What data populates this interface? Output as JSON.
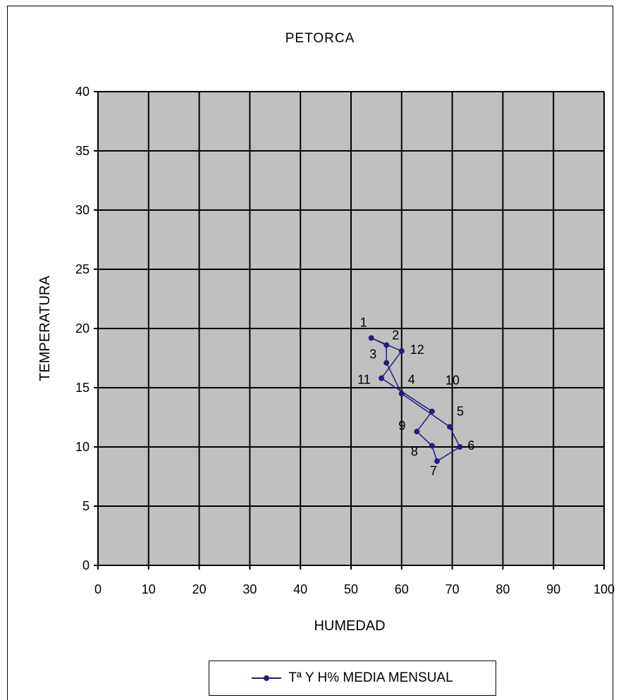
{
  "chart_data": {
    "type": "scatter",
    "title": "PETORCA",
    "xlabel": "HUMEDAD",
    "ylabel": "TEMPERATURA",
    "xlim": [
      0,
      100
    ],
    "ylim": [
      0,
      40
    ],
    "xticks": [
      0,
      10,
      20,
      30,
      40,
      50,
      60,
      70,
      80,
      90,
      100
    ],
    "yticks": [
      0,
      5,
      10,
      15,
      20,
      25,
      30,
      35,
      40
    ],
    "grid": true,
    "plot_background": "#c0c0c0",
    "series_color": "#1f1f7a",
    "legend_position": "bottom",
    "series": [
      {
        "name": "Tª Y H% MEDIA MENSUAL",
        "points": [
          {
            "label": "1",
            "x": 54,
            "y": 19.2
          },
          {
            "label": "2",
            "x": 57,
            "y": 18.6
          },
          {
            "label": "3",
            "x": 57,
            "y": 17.1
          },
          {
            "label": "4",
            "x": 60,
            "y": 14.5
          },
          {
            "label": "5",
            "x": 69.5,
            "y": 11.7
          },
          {
            "label": "6",
            "x": 71.5,
            "y": 10.0
          },
          {
            "label": "7",
            "x": 67,
            "y": 8.8
          },
          {
            "label": "8",
            "x": 66,
            "y": 10.1
          },
          {
            "label": "9",
            "x": 63,
            "y": 11.3
          },
          {
            "label": "10",
            "x": 66,
            "y": 13.0
          },
          {
            "label": "11",
            "x": 56,
            "y": 15.8
          },
          {
            "label": "12",
            "x": 60,
            "y": 18.1
          }
        ]
      }
    ]
  }
}
